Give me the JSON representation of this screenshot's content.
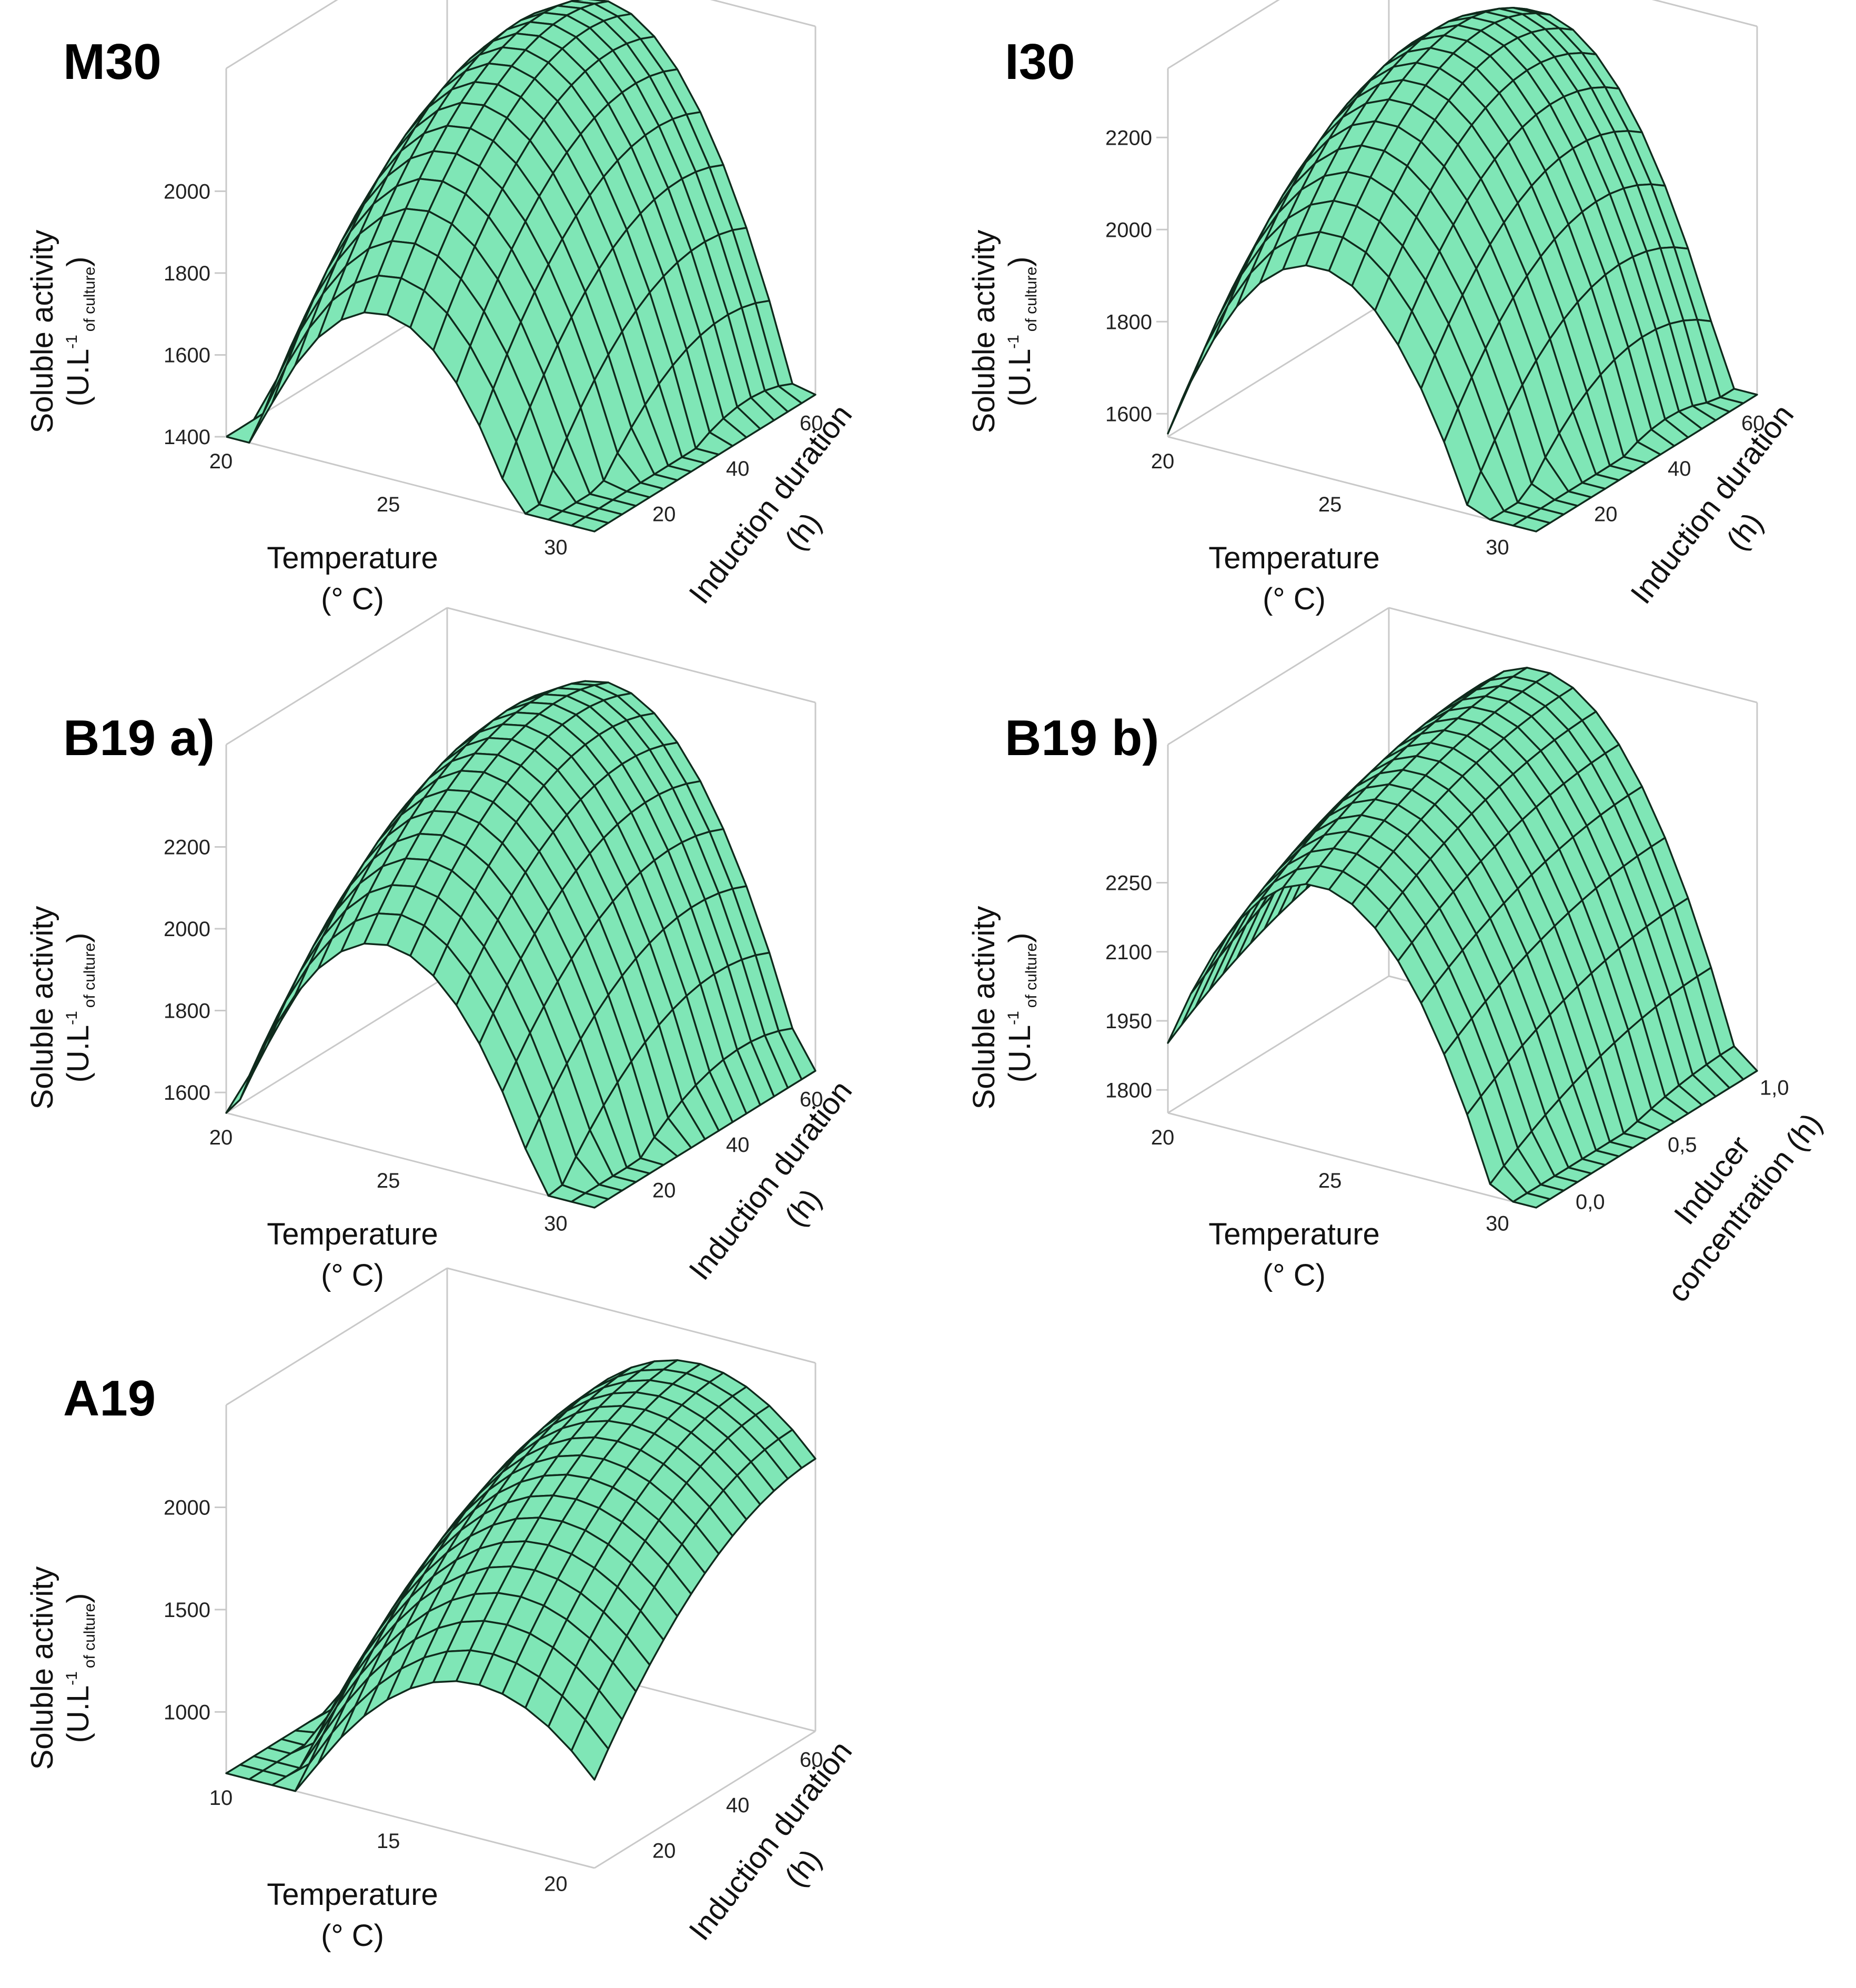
{
  "colors": {
    "surface": "#7fe6b6",
    "mesh": "#0f2a1c",
    "box": "#c9c9c9",
    "text": "#111111"
  },
  "chart_data": [
    {
      "type": "surface3d",
      "panel": "M30",
      "title": "M30",
      "zlabel_main": "Soluble activity",
      "zlabel_unit_prefix": "(U.L",
      "zlabel_unit_sup": "-1",
      "zlabel_unit_sub": "of culture",
      "zlabel_unit_suffix": ")",
      "xlabel_line1": "Temperature",
      "xlabel_line2": "(° C)",
      "ylabel_line1": "Induction duration",
      "ylabel_line2": "(h)",
      "xlim": [
        20,
        31
      ],
      "ylim": [
        10,
        70
      ],
      "zlim": [
        1400,
        2300
      ],
      "xticks": [
        20,
        25,
        30
      ],
      "yticks": [
        20,
        40,
        60
      ],
      "zticks": [
        1400,
        1600,
        1800,
        2000
      ],
      "x_tick_labels": [
        "20",
        "25",
        "30"
      ],
      "y_tick_labels": [
        "20",
        "40",
        "60"
      ],
      "z_tick_labels": [
        "1400",
        "1600",
        "1800",
        "2000"
      ],
      "model": {
        "x0": 24.7,
        "y0": 58,
        "zmax": 2260,
        "ax": 26,
        "ay": 0.2,
        "bxy": 0
      },
      "grid_n": 16
    },
    {
      "type": "surface3d",
      "panel": "I30",
      "title": "I30",
      "zlabel_main": "Soluble activity",
      "zlabel_unit_prefix": "(U.L",
      "zlabel_unit_sup": "-1",
      "zlabel_unit_sub": "of culture",
      "zlabel_unit_suffix": ")",
      "xlabel_line1": "Temperature",
      "xlabel_line2": "(° C)",
      "ylabel_line1": "Induction duration",
      "ylabel_line2": "(h)",
      "xlim": [
        20,
        31
      ],
      "ylim": [
        10,
        70
      ],
      "zlim": [
        1550,
        2350
      ],
      "xticks": [
        20,
        25,
        30
      ],
      "yticks": [
        20,
        40,
        60
      ],
      "zticks": [
        1600,
        1800,
        2000,
        2200
      ],
      "x_tick_labels": [
        "20",
        "25",
        "30"
      ],
      "y_tick_labels": [
        "20",
        "40",
        "60"
      ],
      "z_tick_labels": [
        "1600",
        "1800",
        "2000",
        "2200"
      ],
      "model": {
        "x0": 24.5,
        "y0": 52,
        "zmax": 2320,
        "ax": 22,
        "ay": 0.18,
        "bxy": 0
      },
      "grid_n": 16
    },
    {
      "type": "surface3d",
      "panel": "B19 a)",
      "title": "B19 a)",
      "zlabel_main": "Soluble activity",
      "zlabel_unit_prefix": "(U.L",
      "zlabel_unit_sup": "-1",
      "zlabel_unit_sub": "of culture",
      "zlabel_unit_suffix": ")",
      "xlabel_line1": "Temperature",
      "xlabel_line2": "(° C)",
      "ylabel_line1": "Induction duration",
      "ylabel_line2": "(h)",
      "xlim": [
        20,
        31
      ],
      "ylim": [
        10,
        70
      ],
      "zlim": [
        1550,
        2450
      ],
      "xticks": [
        20,
        25,
        30
      ],
      "yticks": [
        20,
        40,
        60
      ],
      "zticks": [
        1600,
        1800,
        2000,
        2200
      ],
      "x_tick_labels": [
        "20",
        "25",
        "30"
      ],
      "y_tick_labels": [
        "20",
        "40",
        "60"
      ],
      "z_tick_labels": [
        "1600",
        "1800",
        "2000",
        "2200"
      ],
      "model": {
        "x0": 24.8,
        "y0": 56,
        "zmax": 2400,
        "ax": 24,
        "ay": 0.16,
        "bxy": 0
      },
      "grid_n": 16
    },
    {
      "type": "surface3d",
      "panel": "B19 b)",
      "title": "B19 b)",
      "zlabel_main": "Soluble activity",
      "zlabel_unit_prefix": "(U.L",
      "zlabel_unit_sup": "-1",
      "zlabel_unit_sub": "of culture",
      "zlabel_unit_suffix": ")",
      "xlabel_line1": "Temperature",
      "xlabel_line2": "(° C)",
      "ylabel_line1": "Inducer",
      "ylabel_line2": "concentration (h)",
      "xlim": [
        20,
        31
      ],
      "ylim": [
        -0.1,
        1.1
      ],
      "zlim": [
        1750,
        2550
      ],
      "xticks": [
        20,
        25,
        30
      ],
      "yticks": [
        0.0,
        0.5,
        1.0
      ],
      "zticks": [
        1800,
        1950,
        2100,
        2250
      ],
      "x_tick_labels": [
        "20",
        "25",
        "30"
      ],
      "y_tick_labels": [
        "0,0",
        "0,5",
        "1,0"
      ],
      "z_tick_labels": [
        "1800",
        "1950",
        "2100",
        "2250"
      ],
      "model": {
        "x0": 24.5,
        "y0": 1.1,
        "zmax": 2500,
        "ax": 21,
        "ay": 120,
        "bxy": 0
      },
      "grid_n": 16
    },
    {
      "type": "surface3d",
      "panel": "A19",
      "title": "A19",
      "zlabel_main": "Soluble activity",
      "zlabel_unit_prefix": "(U.L",
      "zlabel_unit_sup": "-1",
      "zlabel_unit_sub": "of culture",
      "zlabel_unit_suffix": ")",
      "xlabel_line1": "Temperature",
      "xlabel_line2": "(° C)",
      "ylabel_line1": "Induction duration",
      "ylabel_line2": "(h)",
      "xlim": [
        10,
        21
      ],
      "ylim": [
        10,
        70
      ],
      "zlim": [
        700,
        2500
      ],
      "xticks": [
        10,
        15,
        20
      ],
      "yticks": [
        20,
        40,
        60
      ],
      "zticks": [
        1000,
        1500,
        2000
      ],
      "x_tick_labels": [
        "10",
        "15",
        "20"
      ],
      "y_tick_labels": [
        "20",
        "40",
        "60"
      ],
      "z_tick_labels": [
        "1000",
        "1500",
        "2000"
      ],
      "model": {
        "x0": 17.5,
        "y0": 70,
        "zmax": 2350,
        "ax": 26,
        "ay": 0.25,
        "bxy": 0
      },
      "grid_n": 16
    }
  ]
}
